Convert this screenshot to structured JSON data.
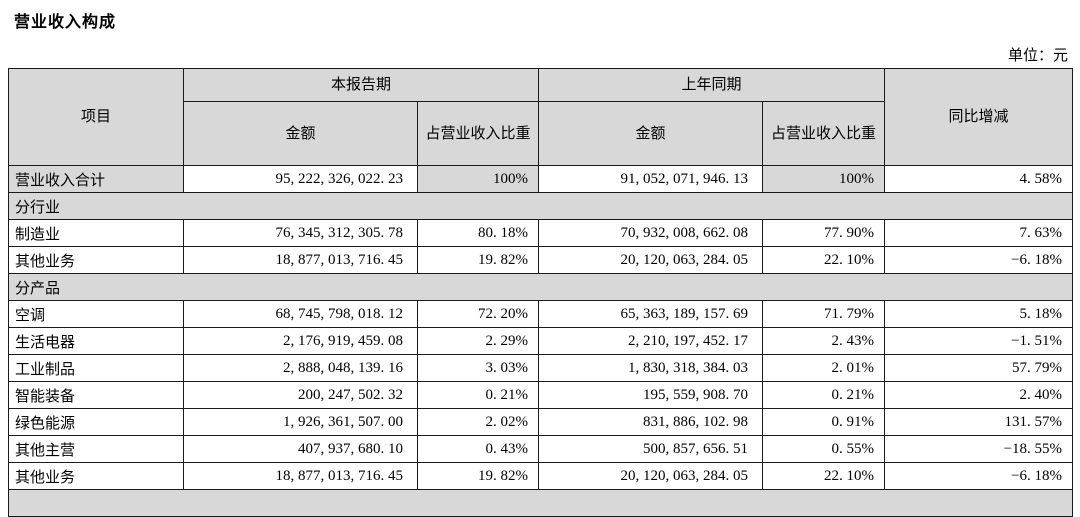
{
  "page": {
    "title": "营业收入构成",
    "unit_label": "单位：元"
  },
  "table": {
    "headers": {
      "item": "项目",
      "current_period": "本报告期",
      "prior_period": "上年同期",
      "amount": "金额",
      "revenue_share": "占营业收入比重",
      "yoy_change": "同比增减"
    },
    "rows": [
      {
        "type": "total",
        "cells": [
          "营业收入合计",
          "95, 222, 326, 022. 23",
          "100%",
          "91, 052, 071, 946. 13",
          "100%",
          "4. 58%"
        ]
      },
      {
        "type": "section",
        "label": "分行业"
      },
      {
        "type": "data",
        "cells": [
          "制造业",
          "76, 345, 312, 305. 78",
          "80. 18%",
          "70, 932, 008, 662. 08",
          "77. 90%",
          "7. 63%"
        ]
      },
      {
        "type": "data",
        "cells": [
          "其他业务",
          "18, 877, 013, 716. 45",
          "19. 82%",
          "20, 120, 063, 284. 05",
          "22. 10%",
          "−6. 18%"
        ]
      },
      {
        "type": "section",
        "label": "分产品"
      },
      {
        "type": "data",
        "cells": [
          "空调",
          "68, 745, 798, 018. 12",
          "72. 20%",
          "65, 363, 189, 157. 69",
          "71. 79%",
          "5. 18%"
        ]
      },
      {
        "type": "data",
        "cells": [
          "生活电器",
          "2, 176, 919, 459. 08",
          "2. 29%",
          "2, 210, 197, 452. 17",
          "2. 43%",
          "−1. 51%"
        ]
      },
      {
        "type": "data",
        "cells": [
          "工业制品",
          "2, 888, 048, 139. 16",
          "3. 03%",
          "1, 830, 318, 384. 03",
          "2. 01%",
          "57. 79%"
        ]
      },
      {
        "type": "data",
        "cells": [
          "智能装备",
          "200, 247, 502. 32",
          "0. 21%",
          "195, 559, 908. 70",
          "0. 21%",
          "2. 40%"
        ]
      },
      {
        "type": "data",
        "cells": [
          "绿色能源",
          "1, 926, 361, 507. 00",
          "2. 02%",
          "831, 886, 102. 98",
          "0. 91%",
          "131. 57%"
        ]
      },
      {
        "type": "data",
        "cells": [
          "其他主营",
          "407, 937, 680. 10",
          "0. 43%",
          "500, 857, 656. 51",
          "0. 55%",
          "−18. 55%"
        ]
      },
      {
        "type": "data",
        "cells": [
          "其他业务",
          "18, 877, 013, 716. 45",
          "19. 82%",
          "20, 120, 063, 284. 05",
          "22. 10%",
          "−6. 18%"
        ]
      },
      {
        "type": "partial",
        "label": ""
      }
    ],
    "colors": {
      "header_bg": "#d8d8d8",
      "border": "#1a1a1a",
      "page_bg": "#ffffff"
    }
  }
}
